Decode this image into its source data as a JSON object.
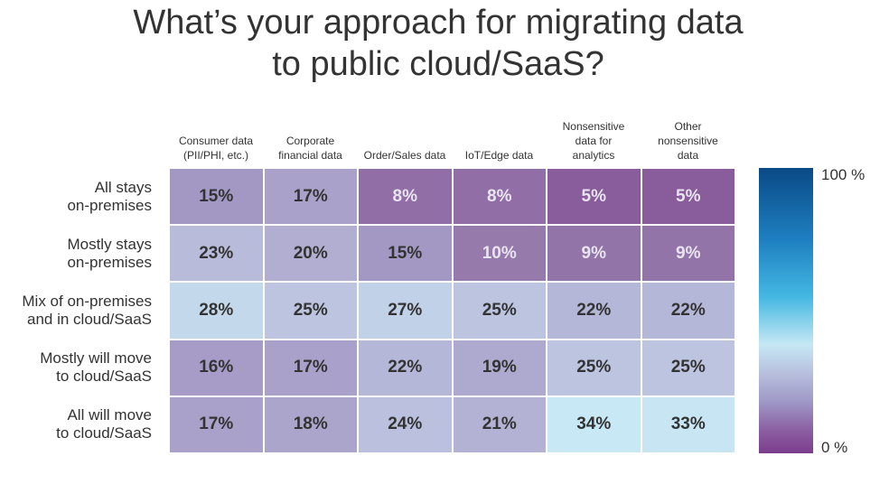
{
  "chart_data": {
    "type": "heatmap",
    "title_lines": [
      "What’s your approach for migrating data",
      "to public cloud/SaaS?"
    ],
    "columns": [
      {
        "lines": [
          "Consumer data",
          "(PII/PHI, etc.)"
        ]
      },
      {
        "lines": [
          "Corporate",
          "financial data"
        ]
      },
      {
        "lines": [
          "Order/Sales data"
        ]
      },
      {
        "lines": [
          "IoT/Edge data"
        ]
      },
      {
        "lines": [
          "Nonsensitive",
          "data for",
          "analytics"
        ]
      },
      {
        "lines": [
          "Other",
          "nonsensitive",
          "data"
        ]
      }
    ],
    "rows": [
      {
        "lines": [
          "All stays",
          "on-premises"
        ],
        "values": [
          15,
          17,
          8,
          8,
          5,
          5
        ]
      },
      {
        "lines": [
          "Mostly stays",
          "on-premises"
        ],
        "values": [
          23,
          20,
          15,
          10,
          9,
          9
        ]
      },
      {
        "lines": [
          "Mix of on-premises",
          "and in cloud/SaaS"
        ],
        "values": [
          28,
          25,
          27,
          25,
          22,
          22
        ]
      },
      {
        "lines": [
          "Mostly will move",
          "to cloud/SaaS"
        ],
        "values": [
          16,
          17,
          22,
          19,
          25,
          25
        ]
      },
      {
        "lines": [
          "All will move",
          "to cloud/SaaS"
        ],
        "values": [
          17,
          18,
          24,
          21,
          34,
          33
        ]
      }
    ],
    "value_suffix": "%",
    "scale": {
      "min": 0,
      "max": 100,
      "min_label": "0 %",
      "max_label": "100 %"
    }
  },
  "colors": {
    "text": "#333333",
    "cell_text_dark": "#333333",
    "cell_text_light": "#e8e4f0"
  }
}
